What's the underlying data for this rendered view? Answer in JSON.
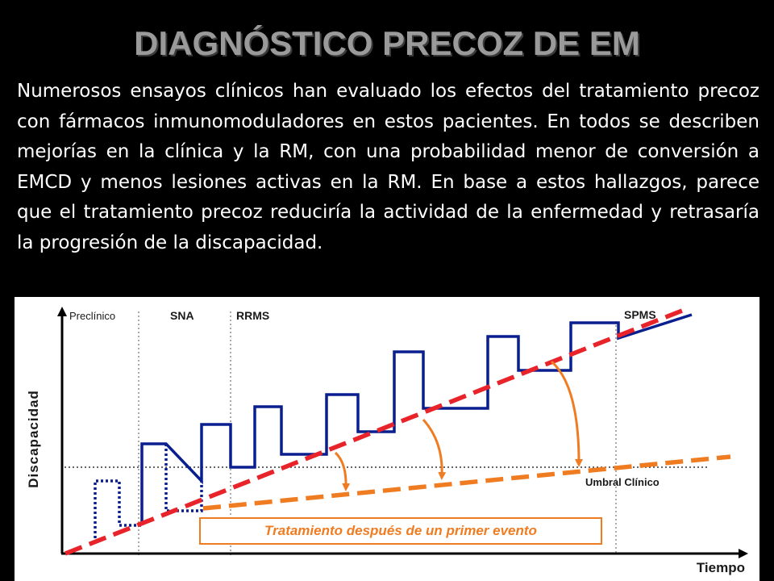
{
  "title": "DIAGNÓSTICO PRECOZ DE EM",
  "paragraph": "Numerosos ensayos clínicos han evaluado los efectos del tratamiento precoz con fármacos inmunomoduladores en estos pacientes. En todos se describen mejorías en la clínica y la RM, con una probabilidad menor de conversión a EMCD y menos lesiones activas en la RM. En base a estos hallazgos, parece que el tratamiento precoz reduciría la actividad de la enfermedad y retrasaría la progresión de la discapacidad.",
  "diagram": {
    "phases": {
      "preclinico": "Preclínico",
      "sna": "SNA",
      "rrms": "RRMS",
      "spms": "SPMS"
    },
    "y_axis_label": "Discapacidad",
    "x_axis_label": "Tiempo",
    "threshold_label": "Umbral Clínico",
    "treatment_label": "Tratamiento después de un primer evento",
    "colors": {
      "natural_course": "#0a1f8f",
      "untreated_trend": "#e8232a",
      "treated_trend": "#f07c22",
      "axis": "#000000"
    }
  }
}
